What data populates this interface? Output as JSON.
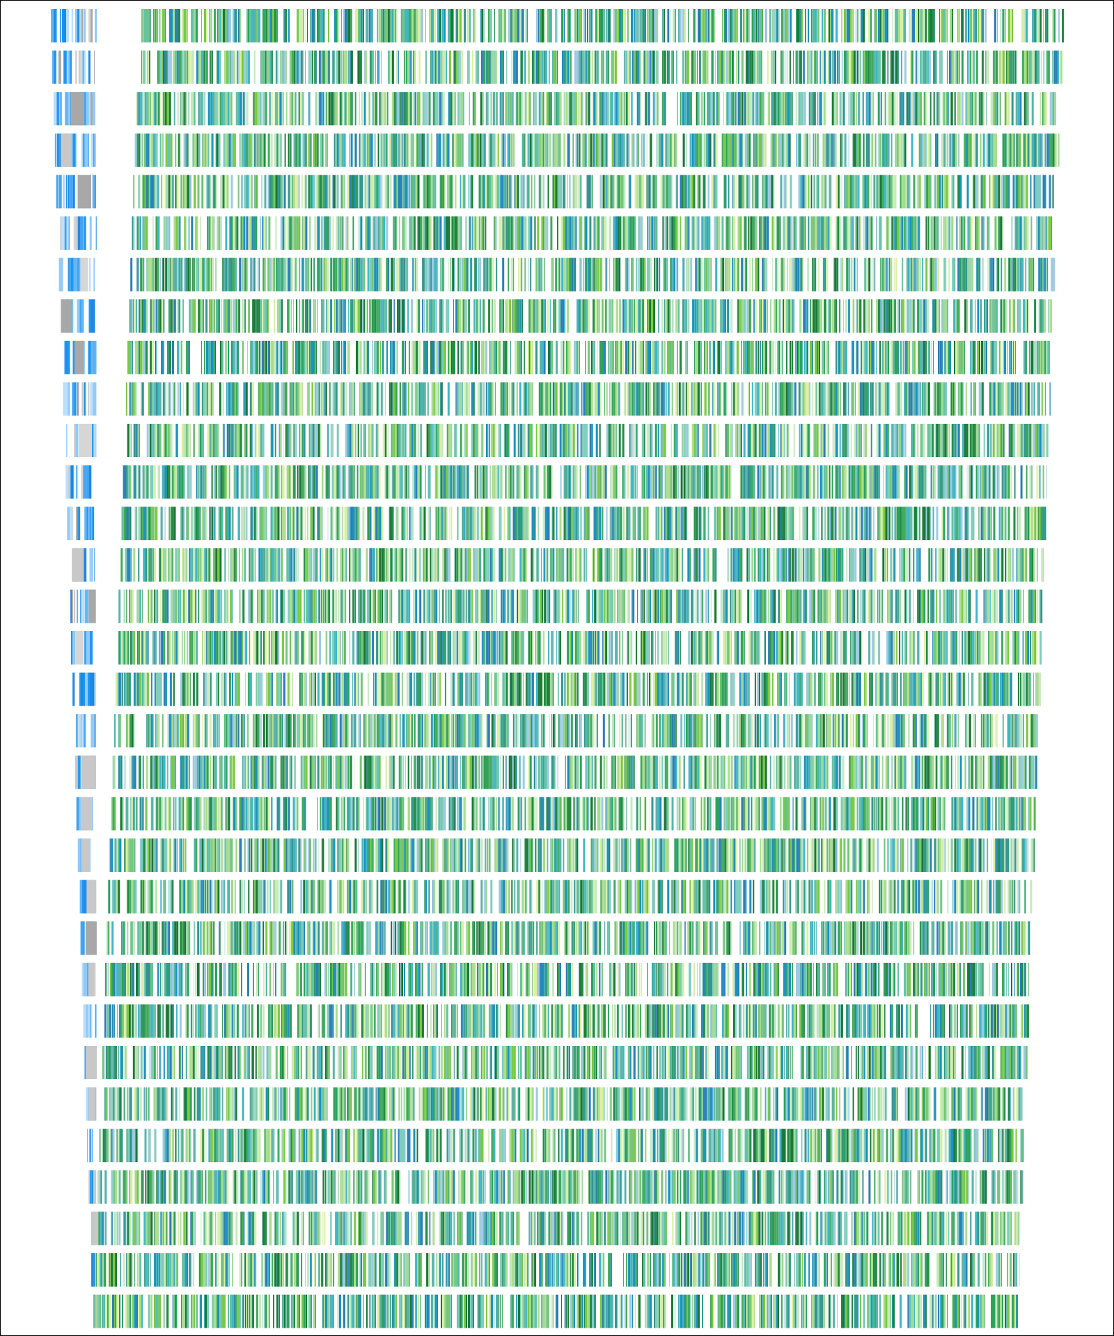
{
  "figure": {
    "kind": "barcode-rows",
    "row_count": 32,
    "background": "#ffffff",
    "border_color": "#000000",
    "colors": {
      "main_palette": [
        "#1b7837",
        "#238b45",
        "#2ca25f",
        "#41ab5d",
        "#66c2a4",
        "#1d91c0",
        "#2c7fb8",
        "#41b6c4",
        "#7fcdbb",
        "#a1d99b",
        "#addd8e",
        "#78c679",
        "#d9f0a3",
        "#5ab4ac",
        "#35978f",
        "#7ac943",
        "#9ecae1",
        "#c7e9c0"
      ],
      "side_palette": [
        "#2196f3",
        "#42a5f5",
        "#64b5f6",
        "#90caf9",
        "#bbdefb",
        "#1e88e5"
      ],
      "side_gray": [
        "#a8a8a8",
        "#c8c8c8",
        "#d6d6d6"
      ]
    }
  }
}
